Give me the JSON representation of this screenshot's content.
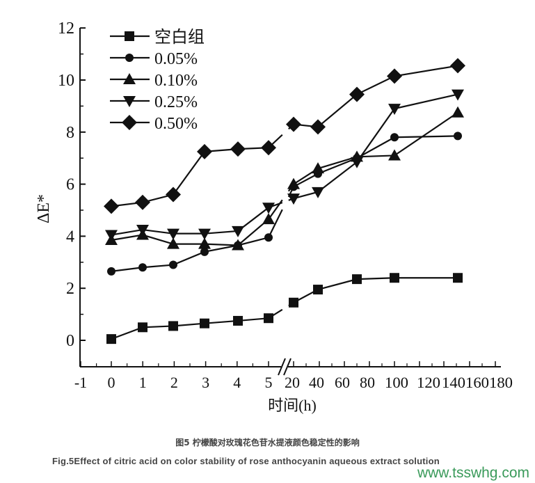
{
  "chart_data": {
    "type": "line",
    "title": "",
    "xlabel": "时间(h)",
    "ylabel": "ΔE*",
    "ylim": [
      -1,
      12
    ],
    "yticks": [
      0,
      2,
      4,
      6,
      8,
      10,
      12
    ],
    "xtick_labels": [
      "-1",
      "0",
      "1",
      "2",
      "3",
      "4",
      "5",
      "20",
      "40",
      "60",
      "80",
      "100",
      "120",
      "140",
      "160",
      "180"
    ],
    "x_axis_break": "between 5 and 20",
    "x": [
      0,
      1,
      2,
      3,
      4,
      5,
      20,
      40,
      72,
      100,
      144
    ],
    "legend_position": "upper left",
    "grid": false,
    "series": [
      {
        "name": "空白组",
        "marker": "square",
        "values": [
          0.05,
          0.5,
          0.55,
          0.65,
          0.75,
          0.85,
          1.45,
          1.95,
          2.35,
          2.4,
          2.4
        ]
      },
      {
        "name": "0.05%",
        "marker": "circle",
        "values": [
          2.65,
          2.8,
          2.9,
          3.4,
          3.65,
          3.95,
          5.9,
          6.4,
          7.0,
          7.8,
          7.85
        ]
      },
      {
        "name": "0.10%",
        "marker": "triangle-up",
        "values": [
          3.85,
          4.05,
          3.7,
          3.7,
          3.65,
          4.65,
          6.0,
          6.6,
          7.05,
          7.1,
          8.75
        ]
      },
      {
        "name": "0.25%",
        "marker": "triangle-down",
        "values": [
          4.05,
          4.25,
          4.1,
          4.1,
          4.2,
          5.1,
          5.45,
          5.7,
          6.85,
          8.9,
          9.45
        ]
      },
      {
        "name": "0.50%",
        "marker": "diamond",
        "values": [
          5.15,
          5.3,
          5.6,
          7.25,
          7.35,
          7.4,
          8.3,
          8.2,
          9.45,
          10.15,
          10.55
        ]
      }
    ]
  },
  "caption": {
    "chinese": "图5 柠檬酸对玫瑰花色苷水提液颜色稳定性的影响",
    "english": "Fig.5Effect of citric acid on color stability of rose anthocyanin aqueous extract solution"
  },
  "watermark": "www.tsswhg.com",
  "colors": {
    "line": "#111111",
    "caption": "#444444",
    "watermark": "#3a9a5a"
  }
}
